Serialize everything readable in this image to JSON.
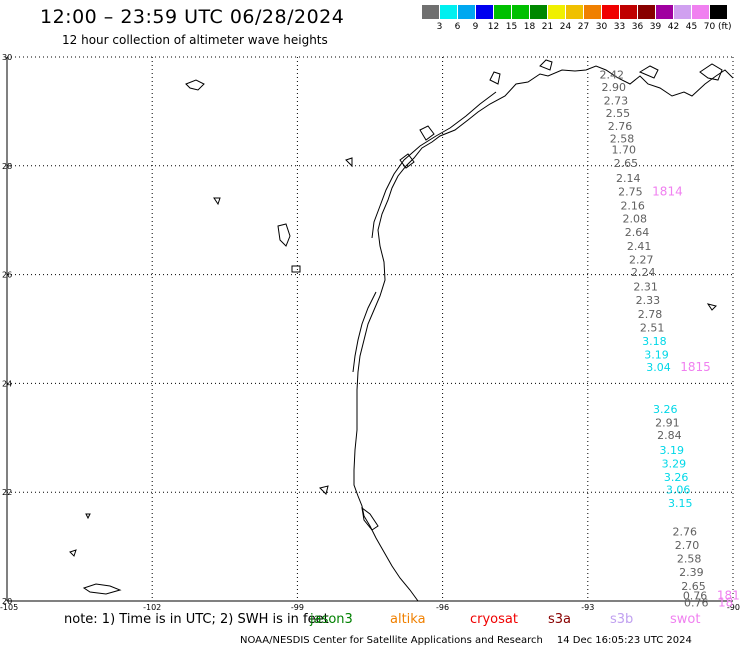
{
  "header": {
    "title": "12:00 – 23:59 UTC 06/28/2024",
    "subtitle": "12 hour collection of altimeter wave heights"
  },
  "colorbar": {
    "colors": [
      "#707070",
      "#00f0f0",
      "#00a8f0",
      "#0000f0",
      "#00c000",
      "#00c000",
      "#008800",
      "#f0f000",
      "#f0c000",
      "#f08000",
      "#f00000",
      "#c00000",
      "#880000",
      "#a000a0",
      "#d0a0f0",
      "#f080f0",
      "#000000"
    ],
    "labels": [
      "3",
      "6",
      "9",
      "12",
      "15",
      "18",
      "21",
      "24",
      "27",
      "30",
      "33",
      "36",
      "39",
      "42",
      "45",
      "70"
    ],
    "unit": "(ft)"
  },
  "map": {
    "lat_ticks": [
      "30",
      "28",
      "26",
      "24",
      "22",
      "20"
    ],
    "lon_ticks": [
      "-105",
      "-102",
      "-99",
      "-96",
      "-93",
      "-90"
    ]
  },
  "track": {
    "gray_labels": [
      {
        "text": "2.42",
        "lat": 29.68
      },
      {
        "text": "2.90",
        "lat": 29.45
      },
      {
        "text": "2.73",
        "lat": 29.2
      },
      {
        "text": "2.55",
        "lat": 28.97
      },
      {
        "text": "2.76",
        "lat": 28.73
      },
      {
        "text": "2.58",
        "lat": 28.5
      },
      {
        "text": "1.70",
        "lat": 28.3
      },
      {
        "text": "2.65",
        "lat": 28.05
      },
      {
        "text": "2.14",
        "lat": 27.78
      },
      {
        "text": "2.75",
        "lat": 27.53
      },
      {
        "text": "2.16",
        "lat": 27.27
      },
      {
        "text": "2.08",
        "lat": 27.03
      },
      {
        "text": "2.64",
        "lat": 26.78
      },
      {
        "text": "2.41",
        "lat": 26.53
      },
      {
        "text": "2.27",
        "lat": 26.28
      },
      {
        "text": "2.24",
        "lat": 26.05
      },
      {
        "text": "2.31",
        "lat": 25.78
      },
      {
        "text": "2.33",
        "lat": 25.53
      },
      {
        "text": "2.78",
        "lat": 25.28
      },
      {
        "text": "2.51",
        "lat": 25.03
      },
      {
        "text": "2.91",
        "lat": 23.28
      },
      {
        "text": "2.84",
        "lat": 23.05
      },
      {
        "text": "2.76",
        "lat": 21.28
      },
      {
        "text": "2.70",
        "lat": 21.03
      },
      {
        "text": "2.58",
        "lat": 20.78
      },
      {
        "text": "2.39",
        "lat": 20.53
      },
      {
        "text": "2.65",
        "lat": 20.28
      },
      {
        "text": "0.76",
        "lat": 20.1
      },
      {
        "text": "0.76",
        "lat": 19.97
      }
    ],
    "cyan_labels": [
      {
        "text": "3.18",
        "lat": 24.78
      },
      {
        "text": "3.19",
        "lat": 24.53
      },
      {
        "text": "3.04",
        "lat": 24.3
      },
      {
        "text": "3.26",
        "lat": 23.53
      },
      {
        "text": "3.19",
        "lat": 22.78
      },
      {
        "text": "3.29",
        "lat": 22.53
      },
      {
        "text": "3.26",
        "lat": 22.28
      },
      {
        "text": "3.06",
        "lat": 22.05
      },
      {
        "text": "3.15",
        "lat": 21.8
      }
    ],
    "time_labels": [
      {
        "text": "1814",
        "lat": 27.53
      },
      {
        "text": "1815",
        "lat": 24.3
      },
      {
        "text": "181",
        "lat": 20.1
      },
      {
        "text": "18",
        "lat": 19.97
      }
    ]
  },
  "footer": {
    "note": "note:  1) Time is in UTC;  2) SWH is in feet",
    "satellites": [
      {
        "name": "jason3",
        "color": "#008000"
      },
      {
        "name": "altika",
        "color": "#f08000"
      },
      {
        "name": "cryosat",
        "color": "#f00000"
      },
      {
        "name": "s3a",
        "color": "#880000"
      },
      {
        "name": "s3b",
        "color": "#c0a0f0"
      },
      {
        "name": "swot",
        "color": "#f080f0"
      }
    ],
    "credit": "NOAA/NESDIS Center for Satellite Applications and Research",
    "timestamp": "14 Dec 16:05:23 UTC 2024"
  }
}
